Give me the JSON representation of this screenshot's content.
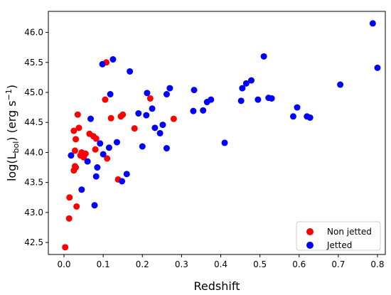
{
  "chart_data": {
    "type": "scatter",
    "title": "",
    "xlabel": "Redshift",
    "ylabel": {
      "prefix": "log(L",
      "subscript": "bol",
      "middle": ") (erg s",
      "superscript": "−1",
      "suffix": ")"
    },
    "xlim": [
      -0.04,
      0.82
    ],
    "ylim": [
      42.3,
      46.35
    ],
    "xticks": [
      "0.0",
      "0.1",
      "0.2",
      "0.3",
      "0.4",
      "0.5",
      "0.6",
      "0.7",
      "0.8"
    ],
    "yticks": [
      "42.5",
      "43.0",
      "43.5",
      "44.0",
      "44.5",
      "45.0",
      "45.5",
      "46.0"
    ],
    "grid": false,
    "legend": {
      "position": "lower-right"
    },
    "series": [
      {
        "name": "Non jetted",
        "color": "#ff0000",
        "points": [
          [
            0.003,
            42.42
          ],
          [
            0.013,
            42.9
          ],
          [
            0.014,
            43.25
          ],
          [
            0.025,
            43.7
          ],
          [
            0.028,
            43.77
          ],
          [
            0.03,
            43.75
          ],
          [
            0.032,
            43.1
          ],
          [
            0.025,
            44.36
          ],
          [
            0.03,
            44.22
          ],
          [
            0.028,
            44.03
          ],
          [
            0.035,
            44.63
          ],
          [
            0.038,
            44.41
          ],
          [
            0.042,
            43.95
          ],
          [
            0.045,
            44.0
          ],
          [
            0.05,
            43.92
          ],
          [
            0.055,
            43.98
          ],
          [
            0.065,
            44.31
          ],
          [
            0.075,
            44.27
          ],
          [
            0.08,
            44.05
          ],
          [
            0.082,
            44.23
          ],
          [
            0.105,
            44.88
          ],
          [
            0.108,
            45.5
          ],
          [
            0.11,
            43.9
          ],
          [
            0.12,
            44.57
          ],
          [
            0.138,
            43.55
          ],
          [
            0.145,
            44.6
          ],
          [
            0.15,
            44.63
          ],
          [
            0.18,
            44.4
          ],
          [
            0.22,
            44.9
          ],
          [
            0.28,
            44.56
          ]
        ]
      },
      {
        "name": "Jetted",
        "color": "#0000ff",
        "points": [
          [
            0.018,
            43.95
          ],
          [
            0.045,
            43.38
          ],
          [
            0.06,
            43.85
          ],
          [
            0.068,
            44.56
          ],
          [
            0.078,
            43.12
          ],
          [
            0.082,
            43.6
          ],
          [
            0.085,
            43.75
          ],
          [
            0.092,
            44.15
          ],
          [
            0.098,
            45.47
          ],
          [
            0.1,
            43.97
          ],
          [
            0.115,
            44.08
          ],
          [
            0.118,
            44.97
          ],
          [
            0.125,
            45.55
          ],
          [
            0.135,
            44.17
          ],
          [
            0.148,
            43.52
          ],
          [
            0.16,
            43.64
          ],
          [
            0.168,
            45.35
          ],
          [
            0.19,
            44.65
          ],
          [
            0.2,
            44.1
          ],
          [
            0.21,
            44.62
          ],
          [
            0.212,
            44.99
          ],
          [
            0.225,
            44.73
          ],
          [
            0.232,
            44.41
          ],
          [
            0.245,
            44.32
          ],
          [
            0.252,
            44.46
          ],
          [
            0.262,
            44.07
          ],
          [
            0.262,
            44.97
          ],
          [
            0.27,
            45.07
          ],
          [
            0.33,
            44.69
          ],
          [
            0.332,
            45.04
          ],
          [
            0.355,
            44.7
          ],
          [
            0.365,
            44.84
          ],
          [
            0.375,
            44.88
          ],
          [
            0.41,
            44.16
          ],
          [
            0.452,
            44.86
          ],
          [
            0.455,
            45.07
          ],
          [
            0.465,
            45.15
          ],
          [
            0.478,
            45.2
          ],
          [
            0.495,
            44.88
          ],
          [
            0.51,
            45.6
          ],
          [
            0.522,
            44.91
          ],
          [
            0.53,
            44.9
          ],
          [
            0.585,
            44.6
          ],
          [
            0.595,
            44.75
          ],
          [
            0.62,
            44.6
          ],
          [
            0.628,
            44.58
          ],
          [
            0.705,
            45.13
          ],
          [
            0.788,
            46.15
          ],
          [
            0.8,
            45.41
          ]
        ]
      }
    ]
  }
}
